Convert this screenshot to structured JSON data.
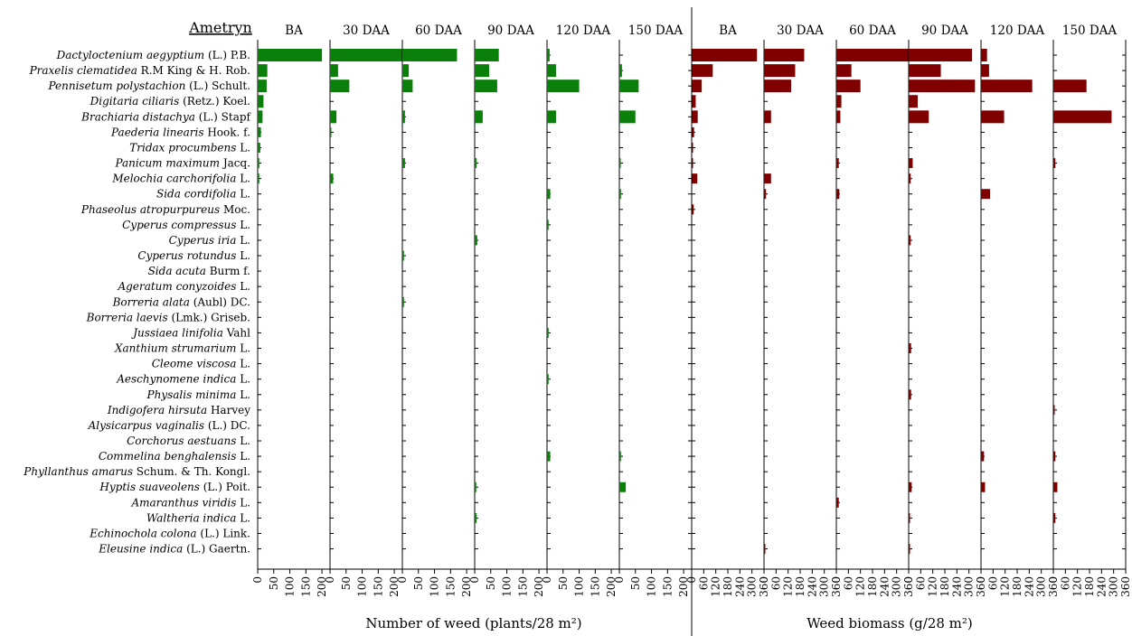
{
  "title": "Ametryn",
  "colors": {
    "density": "#0a7f0a",
    "biomass": "#800000"
  },
  "chart_data": [
    {
      "type": "bar",
      "orientation": "horizontal",
      "xlabel": "Number of weed (plants/28 m²)",
      "xlim": [
        0,
        225
      ],
      "xticks": [
        "0",
        "50",
        "100",
        "150",
        "200"
      ],
      "tick_values": [
        0,
        50,
        100,
        150,
        200
      ],
      "panels": [
        "BA",
        "30 DAA",
        "60 DAA",
        "90 DAA",
        "120 DAA",
        "150 DAA"
      ],
      "categories": [
        "Dactyloctenium aegyptium (L.) P.B.",
        "Praxelis clematidea R.M King & H. Rob.",
        "Pennisetum polystachion (L.) Schult.",
        "Digitaria ciliaris (Retz.) Koel.",
        "Brachiaria distachya (L.) Stapf",
        "Paederia linearis Hook. f.",
        "Tridax procumbens L.",
        "Panicum maximum Jacq.",
        "Melochia carchorifolia L.",
        "Sida cordifolia L.",
        "Phaseolus atropurpureus Moc.",
        "Cyperus compressus L.",
        "Cyperus iria L.",
        "Cyperus rotundus L.",
        "Sida acuta Burm f.",
        "Ageratum conyzoides L.",
        "Borreria alata (Aubl) DC.",
        "Borreria laevis (Lmk.) Griseb.",
        "Jussiaea linifolia Vahl",
        "Xanthium strumarium L.",
        "Cleome viscosa L.",
        "Aeschynomene indica L.",
        "Physalis minima L.",
        "Indigofera hirsuta Harvey",
        "Alysicarpus vaginalis (L.) DC.",
        "Corchorus aestuans L.",
        "Commelina benghalensis L.",
        "Phyllanthus amarus Schum. & Th. Kongl.",
        "Hyptis suaveolens (L.) Poit.",
        "Amaranthus viridis L.",
        "Waltheria indica L.",
        "Echinochola colona (L.) Link.",
        "Eleusine indica (L.) Gaertn."
      ],
      "series": [
        {
          "values": [
            200,
            30,
            28,
            18,
            15,
            10,
            8,
            5,
            5,
            0,
            0,
            0,
            0,
            0,
            0,
            0,
            0,
            0,
            0,
            0,
            0,
            0,
            0,
            0,
            0,
            0,
            0,
            0,
            0,
            0,
            0,
            0,
            0
          ]
        },
        {
          "values": [
            225,
            25,
            60,
            0,
            20,
            3,
            0,
            0,
            10,
            0,
            0,
            0,
            0,
            0,
            0,
            0,
            0,
            0,
            0,
            0,
            0,
            0,
            0,
            0,
            0,
            0,
            0,
            0,
            0,
            0,
            0,
            0,
            0
          ]
        },
        {
          "values": [
            170,
            20,
            32,
            0,
            8,
            0,
            0,
            8,
            0,
            0,
            0,
            0,
            0,
            5,
            0,
            0,
            5,
            0,
            0,
            0,
            0,
            0,
            0,
            0,
            0,
            0,
            0,
            0,
            0,
            0,
            0,
            0,
            0
          ]
        },
        {
          "values": [
            75,
            45,
            70,
            0,
            25,
            0,
            0,
            6,
            0,
            0,
            0,
            0,
            8,
            0,
            0,
            0,
            0,
            0,
            0,
            0,
            0,
            0,
            0,
            0,
            0,
            0,
            0,
            0,
            5,
            0,
            6,
            0,
            0
          ]
        },
        {
          "values": [
            8,
            28,
            100,
            0,
            28,
            0,
            0,
            0,
            0,
            10,
            0,
            5,
            0,
            0,
            0,
            0,
            0,
            0,
            5,
            0,
            0,
            5,
            0,
            0,
            0,
            0,
            10,
            0,
            0,
            0,
            0,
            0,
            0
          ]
        },
        {
          "values": [
            0,
            8,
            60,
            0,
            50,
            0,
            0,
            3,
            0,
            5,
            0,
            0,
            0,
            0,
            0,
            0,
            0,
            0,
            0,
            0,
            0,
            0,
            0,
            0,
            0,
            0,
            5,
            0,
            20,
            0,
            0,
            0,
            0
          ]
        }
      ]
    },
    {
      "type": "bar",
      "orientation": "horizontal",
      "xlabel": "Weed biomass (g/28 m²)",
      "xlim": [
        0,
        360
      ],
      "xticks": [
        "0",
        "60",
        "120",
        "180",
        "240",
        "300",
        "360"
      ],
      "tick_values": [
        0,
        60,
        120,
        180,
        240,
        300,
        360
      ],
      "panels": [
        "BA",
        "30 DAA",
        "60 DAA",
        "90 DAA",
        "120 DAA",
        "150 DAA"
      ],
      "series": [
        {
          "values": [
            325,
            105,
            50,
            20,
            30,
            12,
            5,
            5,
            28,
            0,
            10,
            0,
            0,
            0,
            0,
            0,
            0,
            0,
            0,
            0,
            0,
            0,
            0,
            0,
            0,
            0,
            0,
            0,
            0,
            0,
            0,
            0,
            0
          ]
        },
        {
          "values": [
            200,
            155,
            135,
            0,
            35,
            0,
            0,
            0,
            35,
            10,
            0,
            0,
            0,
            0,
            0,
            0,
            0,
            0,
            0,
            0,
            0,
            0,
            0,
            0,
            0,
            0,
            0,
            0,
            0,
            0,
            0,
            0,
            5
          ]
        },
        {
          "values": [
            360,
            75,
            120,
            25,
            20,
            0,
            0,
            12,
            0,
            15,
            0,
            0,
            0,
            0,
            0,
            0,
            0,
            0,
            0,
            0,
            0,
            0,
            0,
            0,
            0,
            0,
            0,
            0,
            0,
            12,
            0,
            0,
            0
          ]
        },
        {
          "values": [
            315,
            160,
            330,
            45,
            100,
            0,
            0,
            20,
            10,
            0,
            0,
            0,
            10,
            0,
            0,
            0,
            0,
            0,
            0,
            12,
            0,
            0,
            12,
            0,
            0,
            0,
            0,
            0,
            15,
            0,
            5,
            0,
            5
          ]
        },
        {
          "values": [
            30,
            40,
            255,
            0,
            115,
            0,
            0,
            0,
            0,
            45,
            0,
            0,
            0,
            0,
            0,
            0,
            0,
            0,
            0,
            0,
            0,
            0,
            0,
            0,
            0,
            0,
            15,
            0,
            20,
            0,
            0,
            0,
            0
          ]
        },
        {
          "values": [
            0,
            0,
            165,
            0,
            290,
            0,
            0,
            10,
            0,
            0,
            0,
            0,
            0,
            0,
            0,
            0,
            0,
            0,
            0,
            0,
            0,
            0,
            0,
            3,
            0,
            0,
            10,
            0,
            20,
            0,
            10,
            0,
            0
          ]
        }
      ]
    }
  ]
}
